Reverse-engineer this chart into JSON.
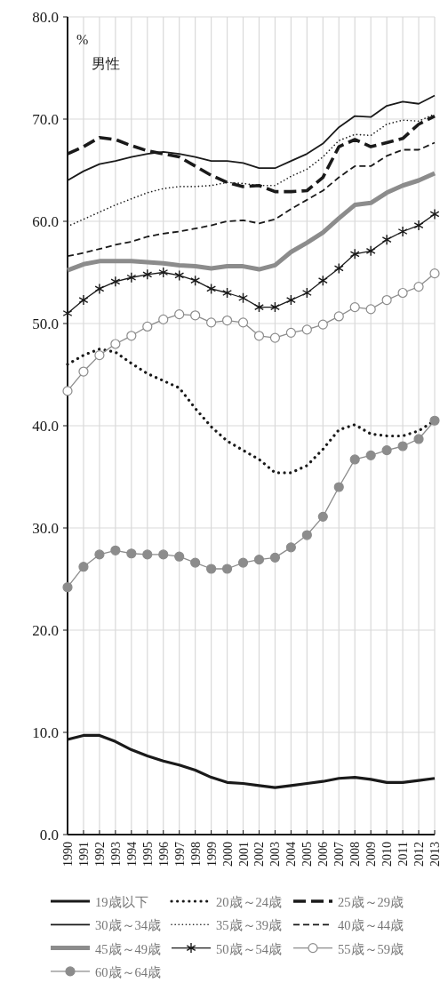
{
  "chart_data": {
    "type": "line",
    "title": "男性",
    "ylabel": "%",
    "categories": [
      "1990",
      "1991",
      "1992",
      "1993",
      "1994",
      "1995",
      "1996",
      "1997",
      "1998",
      "1999",
      "2000",
      "2001",
      "2002",
      "2003",
      "2004",
      "2005",
      "2006",
      "2007",
      "2008",
      "2009",
      "2010",
      "2011",
      "2012",
      "2013"
    ],
    "ylim": [
      0,
      80
    ],
    "yticks": [
      {
        "value": 0,
        "label": "0.0"
      },
      {
        "value": 10,
        "label": "10.0"
      },
      {
        "value": 20,
        "label": "20.0"
      },
      {
        "value": 30,
        "label": "30.0"
      },
      {
        "value": 40,
        "label": "40.0"
      },
      {
        "value": 50,
        "label": "50.0"
      },
      {
        "value": 60,
        "label": "60.0"
      },
      {
        "value": 70,
        "label": "70.0"
      },
      {
        "value": 80,
        "label": "80.0"
      }
    ],
    "grid": true,
    "legend": "bottom",
    "series": [
      {
        "name": "19歳以下",
        "color": "#1a1a1a",
        "line_style": "solid",
        "marker": "none",
        "values": [
          9.3,
          9.7,
          9.7,
          9.1,
          8.3,
          7.7,
          7.2,
          6.8,
          6.3,
          5.6,
          5.1,
          5.0,
          4.8,
          4.6,
          4.8,
          5.0,
          5.2,
          5.5,
          5.6,
          5.4,
          5.1,
          5.1,
          5.3,
          5.5
        ]
      },
      {
        "name": "20歳～24歳",
        "color": "#1a1a1a",
        "line_style": "dotted",
        "marker": "none",
        "values": [
          46.0,
          46.9,
          47.5,
          47.2,
          46.1,
          45.1,
          44.4,
          43.7,
          41.7,
          39.9,
          38.5,
          37.6,
          36.7,
          35.4,
          35.4,
          36.1,
          37.7,
          39.6,
          40.1,
          39.2,
          39.0,
          39.0,
          39.5,
          40.5
        ]
      },
      {
        "name": "25歳～29歳",
        "color": "#1a1a1a",
        "line_style": "dashed",
        "marker": "none",
        "values": [
          66.6,
          67.3,
          68.2,
          68.0,
          67.4,
          66.9,
          66.6,
          66.3,
          65.4,
          64.5,
          63.8,
          63.4,
          63.5,
          62.9,
          62.9,
          63.0,
          64.3,
          67.3,
          68.0,
          67.3,
          67.7,
          68.1,
          69.5,
          70.3
        ]
      },
      {
        "name": "30歳～34歳",
        "color": "#1a1a1a",
        "line_style": "solid",
        "marker": "none",
        "values": [
          64.0,
          64.9,
          65.6,
          65.9,
          66.3,
          66.6,
          66.8,
          66.6,
          66.3,
          65.9,
          65.9,
          65.7,
          65.2,
          65.2,
          65.9,
          66.6,
          67.6,
          69.2,
          70.3,
          70.2,
          71.3,
          71.7,
          71.5,
          72.3
        ]
      },
      {
        "name": "35歳～39歳",
        "color": "#1a1a1a",
        "line_style": "dotted",
        "marker": "none",
        "values": [
          59.5,
          60.2,
          60.9,
          61.6,
          62.2,
          62.8,
          63.2,
          63.4,
          63.4,
          63.5,
          63.8,
          63.7,
          63.5,
          63.5,
          64.4,
          65.1,
          66.3,
          67.9,
          68.5,
          68.4,
          69.5,
          69.9,
          69.8,
          70.5
        ]
      },
      {
        "name": "40歳～44歳",
        "color": "#1a1a1a",
        "line_style": "dashed",
        "marker": "none",
        "values": [
          56.6,
          56.9,
          57.3,
          57.7,
          58.0,
          58.5,
          58.8,
          59.0,
          59.3,
          59.6,
          60.0,
          60.1,
          59.8,
          60.2,
          61.2,
          62.1,
          63.0,
          64.3,
          65.4,
          65.4,
          66.4,
          67.0,
          67.0,
          67.7
        ]
      },
      {
        "name": "45歳～49歳",
        "color": "#8c8c8c",
        "line_style": "solid",
        "marker": "none",
        "values": [
          55.2,
          55.8,
          56.1,
          56.1,
          56.1,
          56.0,
          55.9,
          55.7,
          55.6,
          55.4,
          55.6,
          55.6,
          55.3,
          55.7,
          57.0,
          57.9,
          58.9,
          60.3,
          61.6,
          61.8,
          62.8,
          63.5,
          64.0,
          64.7
        ]
      },
      {
        "name": "50歳～54歳",
        "color": "#1a1a1a",
        "line_style": "solid",
        "marker": "cross",
        "values": [
          51.0,
          52.3,
          53.4,
          54.1,
          54.5,
          54.8,
          55.0,
          54.7,
          54.2,
          53.4,
          53.0,
          52.5,
          51.6,
          51.6,
          52.3,
          53.0,
          54.2,
          55.4,
          56.8,
          57.1,
          58.2,
          59.0,
          59.6,
          60.7
        ]
      },
      {
        "name": "55歳～59歳",
        "color": "#8c8c8c",
        "line_style": "solid",
        "marker": "circle",
        "values": [
          43.4,
          45.3,
          46.9,
          48.0,
          48.8,
          49.7,
          50.4,
          50.9,
          50.8,
          50.1,
          50.3,
          50.1,
          48.8,
          48.6,
          49.1,
          49.4,
          49.9,
          50.7,
          51.6,
          51.4,
          52.3,
          53.0,
          53.6,
          54.9
        ]
      },
      {
        "name": "60歳～64歳",
        "color": "#8c8c8c",
        "line_style": "solid",
        "marker": "circle",
        "values": [
          24.2,
          26.2,
          27.4,
          27.8,
          27.5,
          27.4,
          27.4,
          27.2,
          26.6,
          26.0,
          26.0,
          26.6,
          26.9,
          27.1,
          28.1,
          29.3,
          31.1,
          34.0,
          36.7,
          37.1,
          37.6,
          38.0,
          38.7,
          40.5
        ]
      }
    ]
  }
}
